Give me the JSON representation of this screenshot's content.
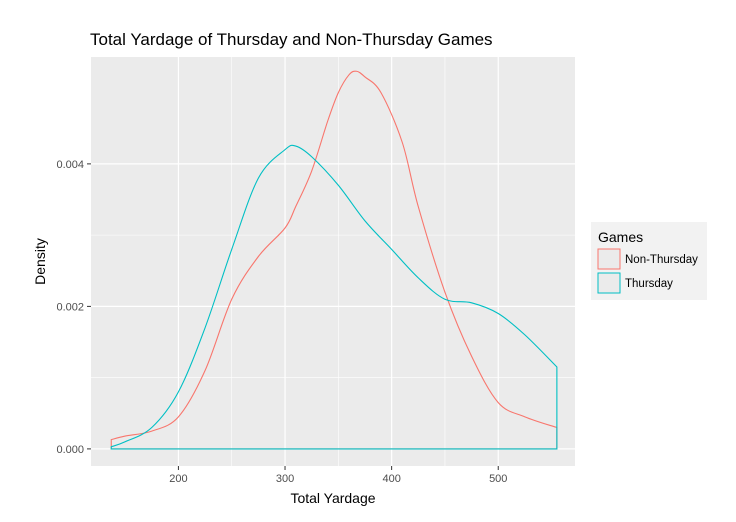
{
  "chart_data": {
    "type": "line",
    "title": "Total Yardage of Thursday and Non-Thursday Games",
    "xlabel": "Total Yardage",
    "ylabel": "Density",
    "xlim": [
      118,
      572
    ],
    "ylim": [
      -0.00024,
      0.0055
    ],
    "x_ticks": [
      200,
      300,
      400,
      500
    ],
    "x_tick_labels": [
      "200",
      "300",
      "400",
      "500"
    ],
    "y_ticks": [
      0.0,
      0.002,
      0.004
    ],
    "y_tick_labels": [
      "0.000",
      "0.002",
      "0.004"
    ],
    "grid": true,
    "panel_background": "#ebebeb",
    "grid_color": "#ffffff",
    "legend": {
      "title": "Games",
      "position": "right"
    },
    "series": [
      {
        "name": "Non-Thursday",
        "color": "#f8766d",
        "closed_outline": true,
        "x": [
          137,
          150,
          175,
          200,
          225,
          250,
          275,
          300,
          310,
          325,
          340,
          350,
          360,
          367,
          375,
          390,
          410,
          425,
          450,
          475,
          500,
          525,
          555
        ],
        "y": [
          0.00013,
          0.00018,
          0.00025,
          0.00045,
          0.0011,
          0.0021,
          0.0027,
          0.0031,
          0.0034,
          0.0039,
          0.0046,
          0.005,
          0.00525,
          0.0053,
          0.00522,
          0.005,
          0.0043,
          0.0034,
          0.0022,
          0.0013,
          0.00065,
          0.00045,
          0.0003
        ]
      },
      {
        "name": "Thursday",
        "color": "#00bfc4",
        "closed_outline": true,
        "x": [
          137,
          150,
          175,
          200,
          225,
          250,
          275,
          300,
          310,
          325,
          350,
          375,
          400,
          425,
          450,
          475,
          500,
          525,
          555
        ],
        "y": [
          3e-05,
          0.0001,
          0.0003,
          0.0008,
          0.0017,
          0.0028,
          0.0038,
          0.0042,
          0.00425,
          0.0041,
          0.0037,
          0.0032,
          0.0028,
          0.0024,
          0.0021,
          0.00205,
          0.0019,
          0.0016,
          0.00115
        ]
      }
    ]
  }
}
